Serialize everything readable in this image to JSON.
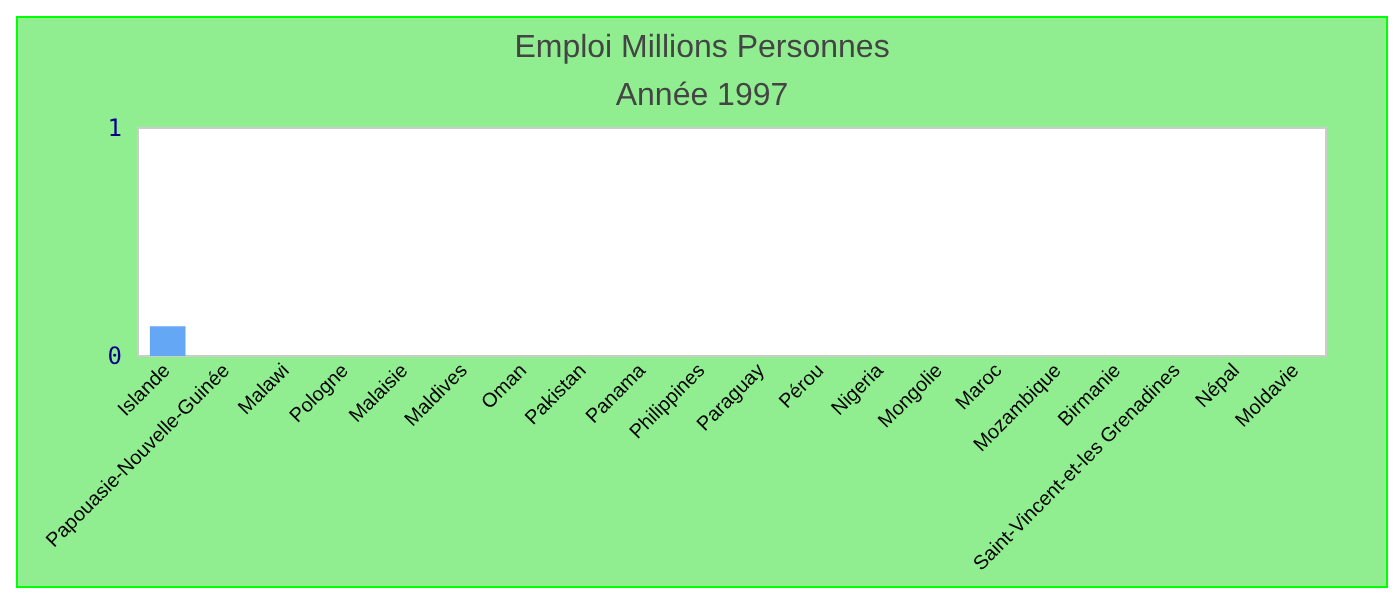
{
  "chart_data": {
    "type": "bar",
    "title": "Emploi Millions Personnes",
    "subtitle": "Année 1997",
    "categories": [
      "Islande",
      "Papouasie-Nouvelle-Guinée",
      "Malawi",
      "Pologne",
      "Malaisie",
      "Maldives",
      "Oman",
      "Pakistan",
      "Panama",
      "Philippines",
      "Paraguay",
      "Pérou",
      "Nigeria",
      "Mongolie",
      "Maroc",
      "Mozambique",
      "Birmanie",
      "Saint-Vincent-et-les Grenadines",
      "Népal",
      "Moldavie"
    ],
    "values": [
      0.13,
      null,
      null,
      null,
      null,
      null,
      null,
      null,
      null,
      null,
      null,
      null,
      null,
      null,
      null,
      null,
      null,
      null,
      null,
      null
    ],
    "color": "#64a8f5",
    "ylim": [
      0,
      1
    ],
    "yticks": [
      0,
      1
    ],
    "grid": false
  }
}
